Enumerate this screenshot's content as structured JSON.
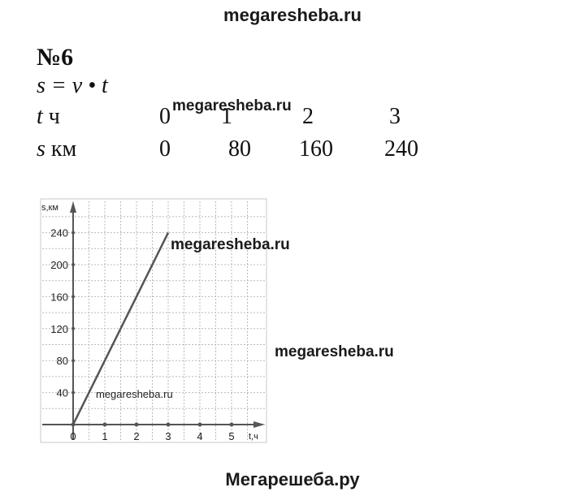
{
  "watermarks": {
    "top": "megaresheba.ru",
    "table": "megaresheba.ru",
    "chart_right_1": "megaresheba.ru",
    "chart_right_2": "megaresheba.ru",
    "chart_small": "megaresheba.ru",
    "bottom": "Мегарешеба.ру"
  },
  "problem": {
    "number": "№6",
    "formula": "s = v • t"
  },
  "table": {
    "t_row": {
      "var": "t",
      "unit": " ч",
      "values": [
        "0",
        "1",
        "2",
        "3"
      ]
    },
    "s_row": {
      "var": "s",
      "unit": " км",
      "values": [
        "0",
        "80",
        "160",
        "240"
      ]
    }
  },
  "chart_data": {
    "type": "line",
    "xlabel": "t,ч",
    "ylabel": "s,км",
    "x_ticks": [
      0,
      1,
      2,
      3,
      4,
      5
    ],
    "y_ticks": [
      40,
      80,
      120,
      160,
      200,
      240
    ],
    "xlim": [
      0,
      5.6
    ],
    "ylim": [
      0,
      265
    ],
    "grid": true,
    "series": [
      {
        "x": [
          0,
          3
        ],
        "y": [
          0,
          240
        ]
      }
    ],
    "marked_points_x": [
      0,
      1,
      2,
      3,
      4,
      5
    ]
  }
}
